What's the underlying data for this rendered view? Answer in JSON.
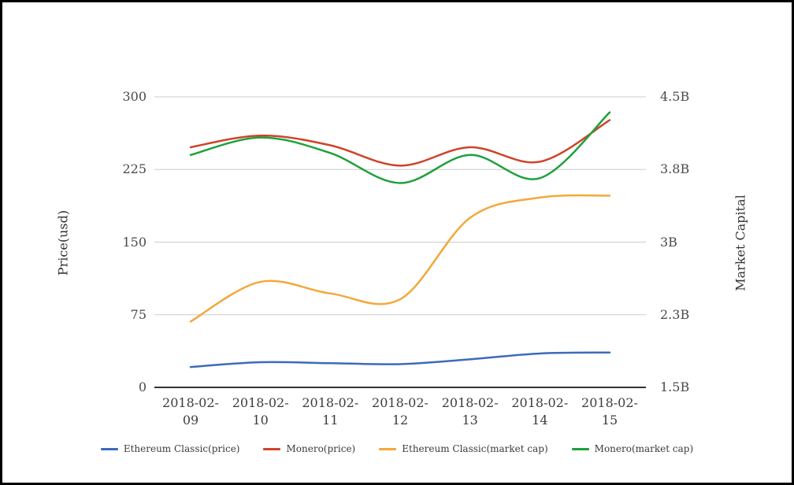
{
  "frame": {
    "border_color": "#000000",
    "background": "#ffffff"
  },
  "axes": {
    "left_title": "Price(usd)",
    "right_title": "Market Capital",
    "left_ticks": [
      "0",
      "75",
      "150",
      "225",
      "300"
    ],
    "right_ticks": [
      "1.5B",
      "2.3B",
      "3B",
      "3.8B",
      "4.5B"
    ],
    "grid_color": "#cccccc",
    "baseline_color": "#333333"
  },
  "chart_data": {
    "type": "line",
    "x": [
      "2018-02-09",
      "2018-02-10",
      "2018-02-11",
      "2018-02-12",
      "2018-02-13",
      "2018-02-14",
      "2018-02-15"
    ],
    "series": [
      {
        "name": "Ethereum Classic(price)",
        "axis": "left",
        "color": "#3d6bba",
        "values": [
          21,
          26,
          25,
          24,
          29,
          35,
          36
        ]
      },
      {
        "name": "Monero(price)",
        "axis": "left",
        "color": "#ce442a",
        "values": [
          248,
          260,
          250,
          229,
          248,
          233,
          276
        ]
      },
      {
        "name": "Ethereum Classic(market cap)",
        "axis": "right",
        "color": "#f3a83b",
        "values": [
          2.18,
          2.59,
          2.47,
          2.41,
          3.25,
          3.46,
          3.48
        ]
      },
      {
        "name": "Monero(market cap)",
        "axis": "right",
        "color": "#1fa03c",
        "values": [
          3.9,
          4.08,
          3.92,
          3.61,
          3.9,
          3.66,
          4.34
        ]
      }
    ],
    "title": "",
    "xlabel": "",
    "ylabel_left": "Price(usd)",
    "ylabel_right": "Market Capital",
    "ylim_left": [
      0,
      300
    ],
    "ylim_right": [
      1.5,
      4.5
    ],
    "grid": true,
    "legend_position": "bottom"
  }
}
